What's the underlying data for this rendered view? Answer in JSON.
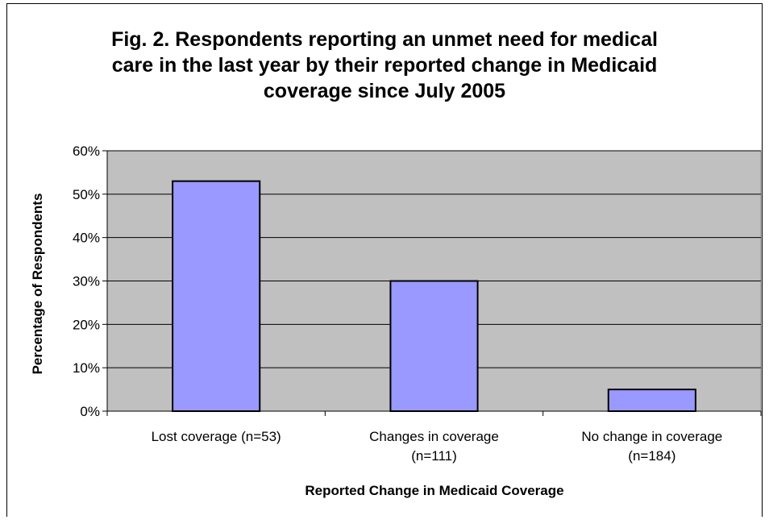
{
  "chart_data": {
    "type": "bar",
    "title_lines": [
      "Fig. 2. Respondents reporting an unmet need for medical",
      "care in the last year by their reported change in Medicaid",
      "coverage since July 2005"
    ],
    "xlabel": "Reported Change in Medicaid Coverage",
    "ylabel": "Percentage of Respondents",
    "categories": [
      [
        "Lost coverage (n=53)"
      ],
      [
        "Changes in coverage",
        "(n=111)"
      ],
      [
        "No change in coverage",
        "(n=184)"
      ]
    ],
    "values": [
      53,
      30,
      5
    ],
    "ylim": [
      0,
      60
    ],
    "yticks": [
      0,
      10,
      20,
      30,
      40,
      50,
      60
    ],
    "ytick_labels": [
      "0%",
      "10%",
      "20%",
      "30%",
      "40%",
      "50%",
      "60%"
    ],
    "grid": true,
    "colors": {
      "bar": "#9999ff",
      "plot_bg": "#c0c0c0",
      "bar_edge": "#000000",
      "grid": "#000000"
    }
  }
}
